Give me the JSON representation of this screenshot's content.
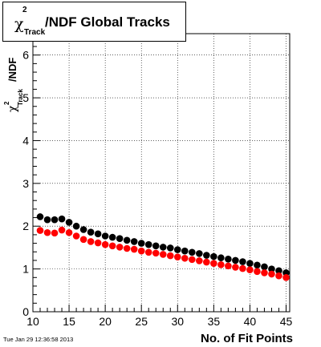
{
  "header": {
    "title_chi": "χ",
    "title_sup": "2",
    "title_sub": "Track",
    "title_main": "/NDF  Global Tracks"
  },
  "footer": {
    "timestamp": "Tue Jan 29 12:36:58 2013"
  },
  "chart_data": {
    "type": "scatter",
    "title": "χ²_Track/NDF  Global Tracks",
    "xlabel": "No. of Fit Points",
    "ylabel": "χ²_Track /NDF",
    "xlim": [
      10,
      45.5
    ],
    "ylim": [
      0,
      6.5
    ],
    "xticks": [
      10,
      15,
      20,
      25,
      30,
      35,
      40,
      45
    ],
    "yticks": [
      0,
      1,
      2,
      3,
      4,
      5,
      6
    ],
    "grid": true,
    "series": [
      {
        "color": "#000000",
        "x": [
          11,
          12,
          13,
          14,
          15,
          16,
          17,
          18,
          19,
          20,
          21,
          22,
          23,
          24,
          25,
          26,
          27,
          28,
          29,
          30,
          31,
          32,
          33,
          34,
          35,
          36,
          37,
          38,
          39,
          40,
          41,
          42,
          43,
          44,
          45
        ],
        "values": [
          2.22,
          2.15,
          2.15,
          2.17,
          2.09,
          2.0,
          1.92,
          1.86,
          1.82,
          1.77,
          1.74,
          1.71,
          1.67,
          1.64,
          1.6,
          1.57,
          1.54,
          1.51,
          1.49,
          1.45,
          1.42,
          1.39,
          1.36,
          1.32,
          1.29,
          1.26,
          1.23,
          1.2,
          1.17,
          1.13,
          1.09,
          1.05,
          1.0,
          0.96,
          0.91
        ]
      },
      {
        "color": "#ff0000",
        "x": [
          11,
          12,
          13,
          14,
          15,
          16,
          17,
          18,
          19,
          20,
          21,
          22,
          23,
          24,
          25,
          26,
          27,
          28,
          29,
          30,
          31,
          32,
          33,
          34,
          35,
          36,
          37,
          38,
          39,
          40,
          41,
          42,
          43,
          44,
          45
        ],
        "values": [
          1.9,
          1.85,
          1.84,
          1.91,
          1.85,
          1.77,
          1.69,
          1.64,
          1.61,
          1.57,
          1.54,
          1.51,
          1.48,
          1.46,
          1.42,
          1.39,
          1.37,
          1.34,
          1.31,
          1.28,
          1.25,
          1.22,
          1.19,
          1.16,
          1.13,
          1.1,
          1.07,
          1.04,
          1.01,
          0.98,
          0.94,
          0.91,
          0.88,
          0.84,
          0.8
        ]
      }
    ]
  }
}
